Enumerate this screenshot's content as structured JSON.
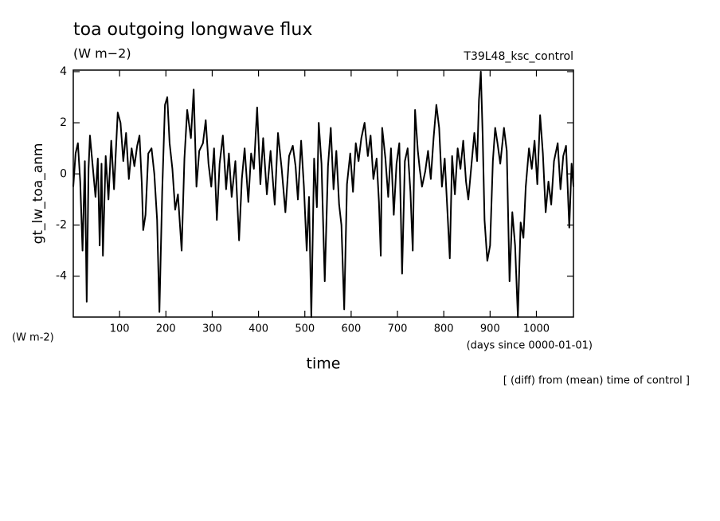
{
  "chart_data": {
    "type": "line",
    "title": "toa outgoing longwave flux",
    "subtitle": "(W m−2)",
    "run_label": "T39L48_ksc_control",
    "y_label": "gt_lw_toa_anm",
    "y_units": "(W m-2)",
    "x_label": "time",
    "x_units": "(days since 0000-01-01)",
    "annotation": "[ (diff) from (mean) time of control ]",
    "xlim": [
      0,
      1080
    ],
    "ylim": [
      -5.6,
      4.06
    ],
    "xticks": [
      100,
      200,
      300,
      400,
      500,
      600,
      700,
      800,
      900,
      1000
    ],
    "yticks": [
      -4,
      -2,
      0,
      2,
      4
    ],
    "color": "#000000",
    "x": [
      0,
      5,
      10,
      15,
      20,
      25,
      29,
      33,
      36,
      42,
      48,
      53,
      57,
      61,
      64,
      70,
      76,
      82,
      88,
      96,
      102,
      108,
      114,
      120,
      126,
      132,
      138,
      143,
      148,
      151,
      156,
      162,
      169,
      175,
      181,
      186,
      192,
      198,
      203,
      208,
      214,
      220,
      226,
      234,
      240,
      246,
      254,
      260,
      266,
      272,
      280,
      286,
      292,
      298,
      304,
      310,
      316,
      323,
      330,
      336,
      342,
      350,
      358,
      364,
      370,
      378,
      384,
      390,
      397,
      404,
      410,
      418,
      426,
      435,
      442,
      450,
      458,
      466,
      474,
      480,
      485,
      492,
      498,
      504,
      509,
      514,
      520,
      526,
      530,
      536,
      543,
      550,
      556,
      562,
      568,
      574,
      579,
      585,
      591,
      598,
      604,
      610,
      616,
      622,
      629,
      636,
      642,
      648,
      655,
      660,
      664,
      667,
      674,
      680,
      686,
      692,
      698,
      704,
      710,
      716,
      722,
      728,
      733,
      738,
      744,
      748,
      753,
      760,
      766,
      772,
      778,
      784,
      790,
      796,
      802,
      808,
      813,
      818,
      824,
      830,
      836,
      842,
      848,
      853,
      860,
      866,
      872,
      876,
      880,
      884,
      888,
      894,
      900,
      906,
      911,
      916,
      922,
      930,
      936,
      942,
      948,
      954,
      960,
      966,
      972,
      977,
      984,
      990,
      996,
      1002,
      1008,
      1014,
      1020,
      1026,
      1032,
      1038,
      1046,
      1052,
      1058,
      1064,
      1071,
      1076,
      1080
    ],
    "values": [
      -0.5,
      0.8,
      1.2,
      -0.3,
      -3.0,
      0.5,
      -5.0,
      0.2,
      1.5,
      0.3,
      -0.9,
      0.6,
      -2.8,
      0.4,
      -3.2,
      0.7,
      -1.0,
      1.3,
      -0.6,
      2.4,
      2.0,
      0.5,
      1.6,
      -0.2,
      1.0,
      0.3,
      1.1,
      1.5,
      -0.4,
      -2.2,
      -1.6,
      0.8,
      1.0,
      0.0,
      -1.8,
      -5.4,
      -0.7,
      2.7,
      3.0,
      1.2,
      0.2,
      -1.4,
      -0.8,
      -3.0,
      0.6,
      2.5,
      1.4,
      3.3,
      -0.5,
      0.9,
      1.2,
      2.1,
      0.4,
      -0.5,
      1.0,
      -1.8,
      0.4,
      1.5,
      -0.6,
      0.8,
      -0.9,
      0.5,
      -2.6,
      -0.2,
      1.0,
      -1.1,
      0.8,
      0.2,
      2.6,
      -0.4,
      1.4,
      -0.8,
      0.9,
      -1.2,
      1.6,
      0.2,
      -1.5,
      0.7,
      1.1,
      0.3,
      -1.0,
      1.3,
      -0.5,
      -3.0,
      -0.9,
      -5.6,
      0.6,
      -1.3,
      2.0,
      0.4,
      -4.2,
      0.3,
      1.8,
      -0.6,
      0.9,
      -1.2,
      -2.0,
      -5.3,
      -0.4,
      0.8,
      -0.7,
      1.2,
      0.5,
      1.4,
      2.0,
      0.7,
      1.5,
      -0.2,
      0.6,
      -1.1,
      -3.2,
      1.8,
      0.6,
      -0.9,
      1.0,
      -1.6,
      0.4,
      1.2,
      -3.9,
      0.5,
      1.0,
      -0.7,
      -3.0,
      2.5,
      0.9,
      0.2,
      -0.5,
      0.1,
      0.9,
      -0.2,
      1.4,
      2.7,
      1.8,
      -0.5,
      0.6,
      -1.5,
      -3.3,
      0.7,
      -0.8,
      1.0,
      0.2,
      1.3,
      -0.3,
      -1.0,
      0.4,
      1.6,
      0.5,
      2.9,
      4.0,
      1.5,
      -1.8,
      -3.4,
      -2.8,
      0.5,
      1.8,
      1.2,
      0.4,
      1.8,
      0.9,
      -4.2,
      -1.5,
      -2.8,
      -5.6,
      -1.9,
      -2.5,
      -0.5,
      1.0,
      0.2,
      1.3,
      -0.4,
      2.3,
      0.8,
      -1.5,
      -0.3,
      -1.2,
      0.5,
      1.2,
      -0.6,
      0.7,
      1.1,
      -2.1,
      0.4,
      -0.5
    ]
  }
}
